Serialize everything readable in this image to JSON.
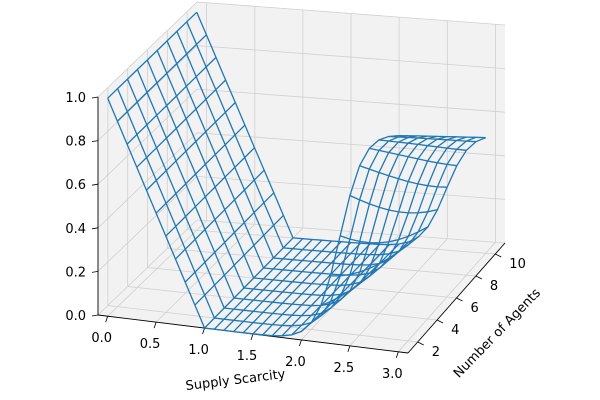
{
  "chart_data": {
    "type": "surface-wireframe-3d",
    "xlabel": "Supply Scarcity",
    "ylabel": "Number of Agents",
    "zlabel": "",
    "xlim": [
      -0.1,
      3.1
    ],
    "ylim": [
      1,
      11
    ],
    "zlim": [
      0.0,
      1.0
    ],
    "x_ticks": [
      "0.0",
      "0.5",
      "1.0",
      "1.5",
      "2.0",
      "2.5",
      "3.0"
    ],
    "y_ticks": [
      "2",
      "4",
      "6",
      "8",
      "10"
    ],
    "z_ticks": [
      "0.0",
      "0.2",
      "0.4",
      "0.6",
      "0.8",
      "1.0"
    ],
    "grid": true,
    "surface": {
      "x_range": [
        0.0,
        3.0
      ],
      "y_range": [
        1,
        10
      ],
      "x_count": 31,
      "y_count": 10,
      "color": "#1f77b4",
      "description_values": {
        "at_x0_y1": 1.0,
        "at_x0_y10": 1.0,
        "min_region_x": [
          1.0,
          2.0
        ],
        "min_value": 0.0,
        "at_x3_y1": 1.0,
        "at_x3_y10": 0.55
      }
    }
  }
}
